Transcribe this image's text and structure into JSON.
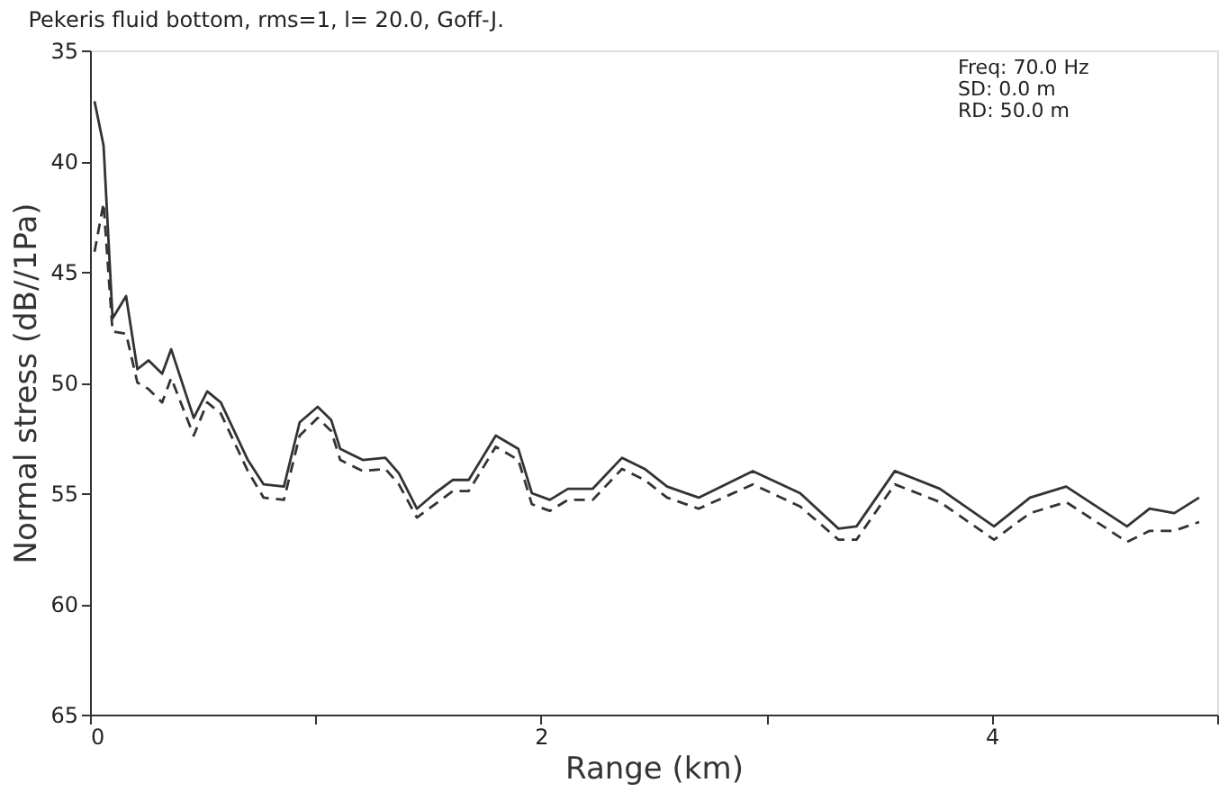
{
  "chart_data": {
    "type": "line",
    "title": "Pekeris fluid bottom, rms=1, l= 20.0, Goff-J.",
    "xlabel": "Range (km)",
    "ylabel": "Normal stress (dB//1Pa)",
    "annotations": [
      "Freq:     70.0 Hz",
      "SD:          0.0 m",
      "RD:        50.0 m"
    ],
    "xlim": [
      0,
      5
    ],
    "xticks": [
      0,
      {
        "value": 1,
        "label": null
      },
      2,
      {
        "value": 3,
        "label": null
      },
      4,
      {
        "value": 5,
        "label": null
      }
    ],
    "ylim": [
      65,
      35
    ],
    "yticks": [
      35,
      40,
      45,
      50,
      55,
      60,
      65
    ],
    "grid": false,
    "marker": "none",
    "series": [
      {
        "color": "#333333",
        "line_style": "solid",
        "x": [
          0.02,
          0.06,
          0.1,
          0.16,
          0.21,
          0.26,
          0.32,
          0.36,
          0.46,
          0.52,
          0.58,
          0.7,
          0.77,
          0.86,
          0.93,
          1.01,
          1.07,
          1.11,
          1.21,
          1.31,
          1.37,
          1.45,
          1.53,
          1.61,
          1.68,
          1.8,
          1.9,
          1.96,
          2.04,
          2.12,
          2.23,
          2.36,
          2.46,
          2.56,
          2.7,
          2.94,
          3.15,
          3.32,
          3.4,
          3.57,
          3.77,
          4.01,
          4.17,
          4.33,
          4.6,
          4.7,
          4.81,
          4.92
        ],
        "values": [
          37.3,
          39.3,
          47.1,
          46.1,
          49.4,
          49.0,
          49.6,
          48.5,
          51.6,
          50.4,
          50.9,
          53.5,
          54.6,
          54.7,
          51.8,
          51.1,
          51.7,
          53.0,
          53.5,
          53.4,
          54.1,
          55.7,
          55.0,
          54.4,
          54.4,
          52.4,
          53.0,
          55.0,
          55.3,
          54.8,
          54.8,
          53.4,
          53.9,
          54.7,
          55.2,
          54.0,
          55.0,
          56.6,
          56.5,
          54.0,
          54.8,
          56.5,
          55.2,
          54.7,
          56.5,
          55.7,
          55.9,
          55.2
        ]
      },
      {
        "color": "#333333",
        "line_style": "dashed",
        "x": [
          0.02,
          0.06,
          0.1,
          0.16,
          0.21,
          0.26,
          0.32,
          0.36,
          0.46,
          0.52,
          0.58,
          0.7,
          0.77,
          0.86,
          0.93,
          1.01,
          1.07,
          1.11,
          1.21,
          1.31,
          1.37,
          1.45,
          1.53,
          1.61,
          1.68,
          1.8,
          1.9,
          1.96,
          2.04,
          2.12,
          2.23,
          2.36,
          2.46,
          2.56,
          2.7,
          2.94,
          3.15,
          3.32,
          3.4,
          3.57,
          3.77,
          4.01,
          4.17,
          4.33,
          4.6,
          4.7,
          4.81,
          4.92
        ],
        "values": [
          44.1,
          41.9,
          47.7,
          47.8,
          50.0,
          50.3,
          50.9,
          49.8,
          52.4,
          50.9,
          51.4,
          54.0,
          55.2,
          55.3,
          52.4,
          51.6,
          52.2,
          53.5,
          54.0,
          53.9,
          54.6,
          56.1,
          55.5,
          54.9,
          54.9,
          52.9,
          53.5,
          55.5,
          55.8,
          55.3,
          55.3,
          53.9,
          54.4,
          55.2,
          55.7,
          54.6,
          55.6,
          57.1,
          57.1,
          54.6,
          55.4,
          57.1,
          55.9,
          55.4,
          57.2,
          56.7,
          56.7,
          56.3
        ]
      }
    ]
  }
}
